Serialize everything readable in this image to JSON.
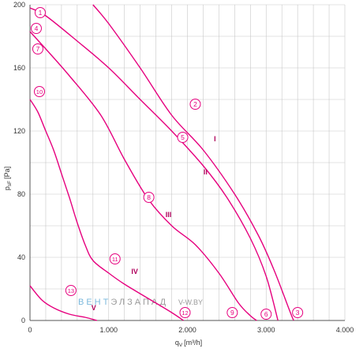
{
  "chart_data": {
    "type": "line",
    "xlabel": "q",
    "xlabel_sub": "V",
    "xlabel_unit": "[m³/h]",
    "ylabel": "p",
    "ylabel_sub": "sF",
    "ylabel_unit": "[Pa]",
    "xlim": [
      0,
      4000
    ],
    "ylim": [
      0,
      200
    ],
    "x_ticks": [
      0,
      1000,
      2000,
      3000,
      4000
    ],
    "x_tick_labels": [
      "0",
      "1.000",
      "2.000",
      "3.000",
      "4.000"
    ],
    "y_ticks": [
      0,
      40,
      80,
      120,
      160,
      200
    ],
    "y_tick_labels": [
      "0",
      "40",
      "80",
      "120",
      "160",
      "200"
    ],
    "grid": true,
    "line_color": "#e6007e",
    "grid_color": "#c8c8c8",
    "series": [
      {
        "name": "I",
        "label_x": 2350,
        "label_y": 115,
        "x": [
          800,
          1000,
          1400,
          1800,
          2200,
          2600,
          2900,
          3100,
          3300,
          3350
        ],
        "y": [
          200,
          188,
          160,
          130,
          108,
          80,
          54,
          32,
          6,
          0
        ]
      },
      {
        "name": "II",
        "label_x": 2230,
        "label_y": 94,
        "x": [
          0,
          200,
          600,
          1000,
          1400,
          1800,
          2200,
          2500,
          2800,
          3000,
          3150
        ],
        "y": [
          198,
          193,
          177,
          160,
          140,
          120,
          98,
          78,
          52,
          28,
          0
        ]
      },
      {
        "name": "III",
        "label_x": 1760,
        "label_y": 67,
        "x": [
          0,
          200,
          500,
          900,
          1200,
          1500,
          1800,
          2100,
          2400,
          2650,
          2800,
          2880
        ],
        "y": [
          183,
          172,
          155,
          130,
          102,
          77,
          60,
          48,
          30,
          11,
          3,
          0
        ]
      },
      {
        "name": "IV",
        "label_x": 1330,
        "label_y": 31,
        "x": [
          0,
          100,
          200,
          300,
          400,
          500,
          600,
          700,
          800,
          1000,
          1200,
          1500,
          1800,
          1950
        ],
        "y": [
          140,
          132,
          120,
          108,
          93,
          78,
          62,
          48,
          38,
          30,
          23,
          14,
          5,
          0
        ]
      },
      {
        "name": "V",
        "label_x": 810,
        "label_y": 8,
        "x": [
          0,
          150,
          300,
          500,
          700,
          850
        ],
        "y": [
          22,
          13,
          8,
          4,
          2,
          0
        ]
      }
    ],
    "markers": [
      {
        "label": "1",
        "x": 130,
        "y": 195
      },
      {
        "label": "2",
        "x": 2100,
        "y": 137
      },
      {
        "label": "3",
        "x": 3400,
        "y": 5
      },
      {
        "label": "4",
        "x": 80,
        "y": 185
      },
      {
        "label": "5",
        "x": 1940,
        "y": 116
      },
      {
        "label": "6",
        "x": 3000,
        "y": 4
      },
      {
        "label": "7",
        "x": 100,
        "y": 172
      },
      {
        "label": "8",
        "x": 1510,
        "y": 78
      },
      {
        "label": "9",
        "x": 2570,
        "y": 5
      },
      {
        "label": "10",
        "x": 120,
        "y": 145
      },
      {
        "label": "11",
        "x": 1080,
        "y": 39
      },
      {
        "label": "12",
        "x": 1970,
        "y": 5
      },
      {
        "label": "13",
        "x": 520,
        "y": 19
      }
    ]
  },
  "watermark": {
    "part1": "ВЕНТ",
    "part2": "ЭЛ",
    "part3": "ЗАПАД",
    "part4": "V-W.BY",
    "color1": "#7ab8dc",
    "color2": "#9a9a9a"
  }
}
